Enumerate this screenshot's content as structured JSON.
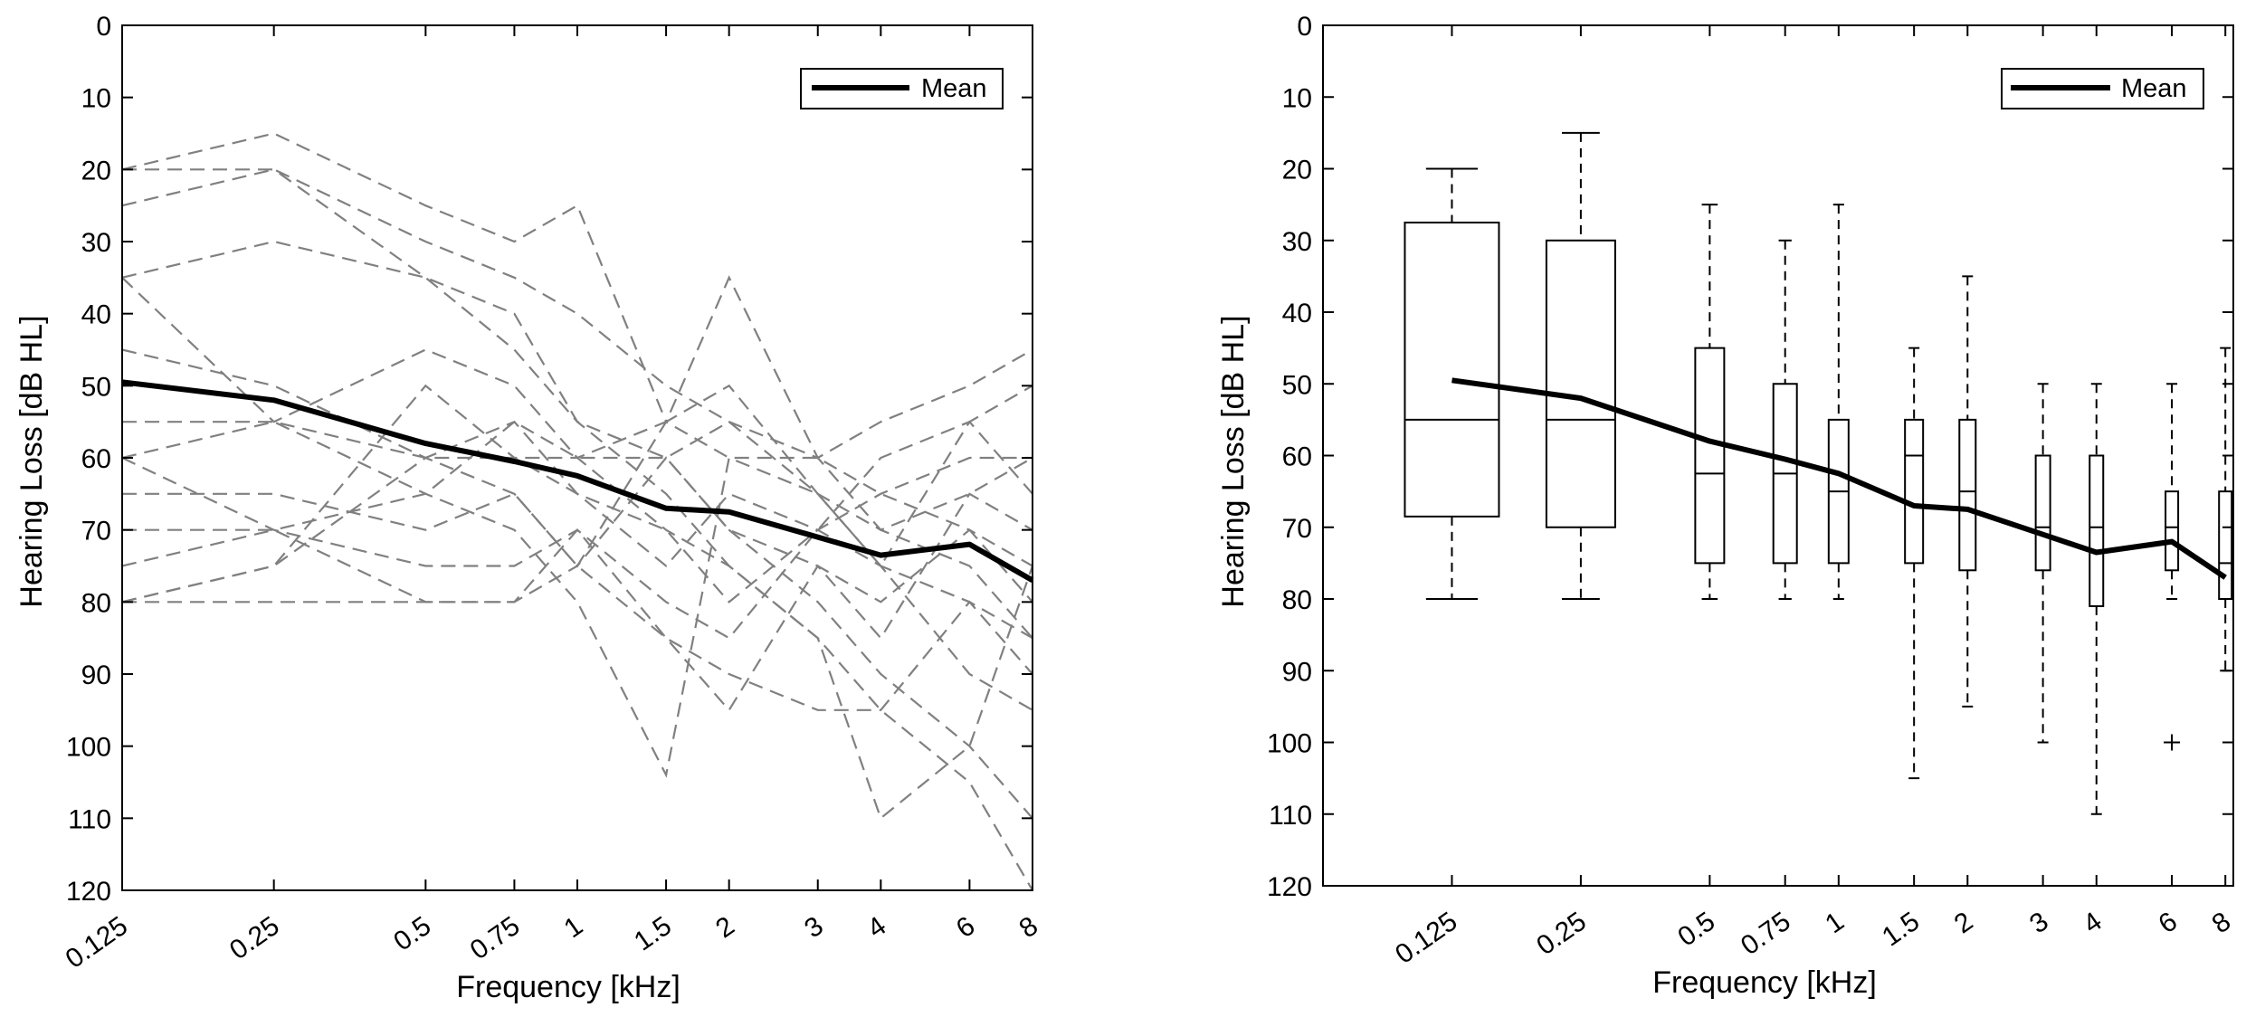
{
  "chart_data": [
    {
      "type": "line",
      "panel": "left",
      "xlabel": "Frequency [kHz]",
      "ylabel": "Hearing Loss [dB HL]",
      "ylim": [
        0,
        120
      ],
      "y_inverted": true,
      "yticks": [
        0,
        10,
        20,
        30,
        40,
        50,
        60,
        70,
        80,
        90,
        100,
        110,
        120
      ],
      "categories": [
        "0.125",
        "0.25",
        "0.5",
        "0.75",
        "1",
        "1.5",
        "2",
        "3",
        "4",
        "6",
        "8"
      ],
      "x_khz": [
        0.125,
        0.25,
        0.5,
        0.75,
        1,
        1.5,
        2,
        3,
        4,
        6,
        8
      ],
      "legend": {
        "label": "Mean",
        "position": "top-right"
      },
      "mean": [
        49.5,
        52,
        58,
        60.5,
        62.5,
        67,
        67.5,
        71,
        73.5,
        72,
        77
      ],
      "individual_series": [
        [
          20,
          15,
          25,
          30,
          25,
          55,
          50,
          65,
          75,
          55,
          50
        ],
        [
          25,
          20,
          30,
          35,
          40,
          50,
          55,
          60,
          70,
          65,
          60
        ],
        [
          20,
          20,
          35,
          45,
          55,
          65,
          75,
          85,
          95,
          105,
          120
        ],
        [
          35,
          30,
          35,
          40,
          55,
          60,
          70,
          80,
          90,
          100,
          110
        ],
        [
          35,
          55,
          45,
          50,
          60,
          70,
          75,
          85,
          110,
          100,
          75
        ],
        [
          45,
          50,
          60,
          65,
          75,
          85,
          90,
          95,
          95,
          80,
          90
        ],
        [
          55,
          55,
          60,
          60,
          60,
          55,
          35,
          60,
          55,
          50,
          45
        ],
        [
          60,
          70,
          75,
          75,
          70,
          80,
          85,
          70,
          60,
          55,
          65
        ],
        [
          65,
          65,
          70,
          65,
          75,
          55,
          60,
          60,
          65,
          70,
          80
        ],
        [
          70,
          70,
          65,
          55,
          60,
          60,
          55,
          65,
          70,
          75,
          85
        ],
        [
          75,
          70,
          80,
          80,
          75,
          60,
          70,
          75,
          80,
          70,
          75
        ],
        [
          80,
          75,
          60,
          55,
          65,
          70,
          80,
          70,
          65,
          60,
          60
        ],
        [
          80,
          80,
          80,
          80,
          70,
          85,
          95,
          75,
          85,
          65,
          70
        ],
        [
          80,
          75,
          50,
          60,
          65,
          75,
          65,
          70,
          75,
          90,
          95
        ],
        [
          60,
          55,
          65,
          70,
          80,
          104,
          60,
          65,
          75,
          80,
          85
        ]
      ]
    },
    {
      "type": "box",
      "panel": "right",
      "xlabel": "Frequency [kHz]",
      "ylabel": "Hearing Loss [dB HL]",
      "ylim": [
        0,
        120
      ],
      "y_inverted": true,
      "yticks": [
        0,
        10,
        20,
        30,
        40,
        50,
        60,
        70,
        80,
        90,
        100,
        110,
        120
      ],
      "categories": [
        "0.125",
        "0.25",
        "0.5",
        "0.75",
        "1",
        "1.5",
        "2",
        "3",
        "4",
        "6",
        "8"
      ],
      "x_khz": [
        0.125,
        0.25,
        0.5,
        0.75,
        1,
        1.5,
        2,
        3,
        4,
        6,
        8
      ],
      "legend": {
        "label": "Mean",
        "position": "top-right"
      },
      "mean": [
        49.5,
        52,
        58,
        60.5,
        62.5,
        67,
        67.5,
        71,
        73.5,
        72,
        77
      ],
      "boxes": [
        {
          "q1": 27.5,
          "median": 55,
          "q3": 68.5,
          "whisker_low": 20,
          "whisker_high": 80
        },
        {
          "q1": 30,
          "median": 55,
          "q3": 70,
          "whisker_low": 15,
          "whisker_high": 80
        },
        {
          "q1": 45,
          "median": 62.5,
          "q3": 75,
          "whisker_low": 25,
          "whisker_high": 80
        },
        {
          "q1": 50,
          "median": 62.5,
          "q3": 75,
          "whisker_low": 30,
          "whisker_high": 80
        },
        {
          "q1": 55,
          "median": 65,
          "q3": 75,
          "whisker_low": 25,
          "whisker_high": 80
        },
        {
          "q1": 55,
          "median": 60,
          "q3": 75,
          "whisker_low": 45,
          "whisker_high": 105
        },
        {
          "q1": 55,
          "median": 65,
          "q3": 76,
          "whisker_low": 35,
          "whisker_high": 95
        },
        {
          "q1": 60,
          "median": 70,
          "q3": 76,
          "whisker_low": 50,
          "whisker_high": 100
        },
        {
          "q1": 60,
          "median": 70,
          "q3": 81,
          "whisker_low": 50,
          "whisker_high": 110
        },
        {
          "q1": 65,
          "median": 70,
          "q3": 76,
          "whisker_low": 50,
          "whisker_high": 80
        },
        {
          "q1": 65,
          "median": 75,
          "q3": 80,
          "whisker_low": 45,
          "whisker_high": 90
        }
      ],
      "outliers": [
        {
          "category": "6",
          "value": 100
        }
      ]
    }
  ],
  "colors": {
    "axis": "#000000",
    "mean_line": "#000000",
    "individual_line": "#808080",
    "background": "#ffffff"
  }
}
